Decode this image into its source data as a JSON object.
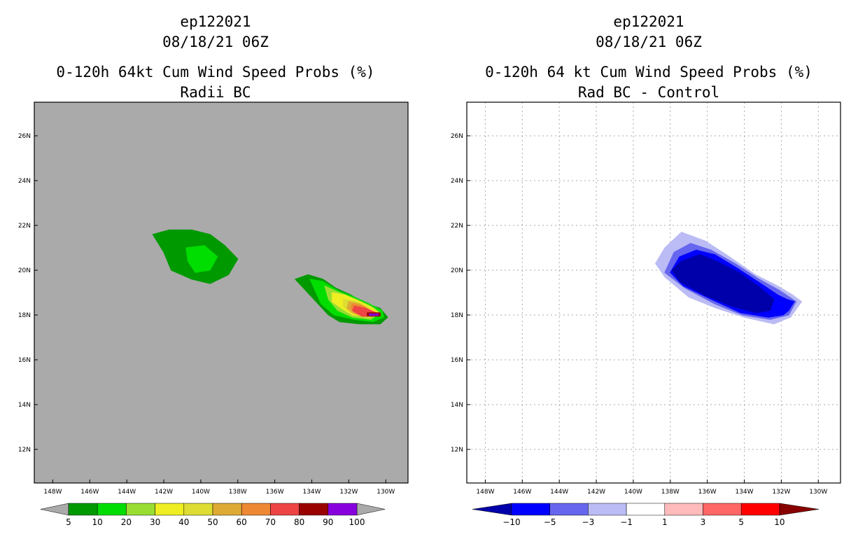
{
  "chart_data": [
    {
      "type": "filled-contour",
      "header": [
        "ep122021",
        "08/18/21 06Z"
      ],
      "title": "0-120h 64kt Cum Wind Speed Probs (%)",
      "subtitle": "Radii BC",
      "background": "#aaaaaa",
      "grid": false,
      "x_ticks": [
        "148W",
        "146W",
        "144W",
        "142W",
        "140W",
        "138W",
        "136W",
        "134W",
        "132W",
        "130W"
      ],
      "y_ticks": [
        "12N",
        "14N",
        "16N",
        "18N",
        "20N",
        "22N",
        "24N",
        "26N"
      ],
      "colorbar": {
        "labels": [
          "5",
          "10",
          "20",
          "30",
          "40",
          "50",
          "60",
          "70",
          "80",
          "90",
          "100"
        ],
        "colors": [
          "#009900",
          "#00dd00",
          "#99dd33",
          "#eeee22",
          "#dddd33",
          "#ddaa33",
          "#ee8833",
          "#ee4444",
          "#990000",
          "#8800dd"
        ],
        "end_color": "#aaaaaa"
      },
      "regions": [
        {
          "level": "5-10",
          "color": "#009900",
          "lonlat": [
            [
              -142.6,
              21.6
            ],
            [
              -141.7,
              21.8
            ],
            [
              -140.5,
              21.8
            ],
            [
              -139.5,
              21.6
            ],
            [
              -138.7,
              21.1
            ],
            [
              -138.0,
              20.5
            ],
            [
              -138.5,
              19.8
            ],
            [
              -139.5,
              19.4
            ],
            [
              -140.5,
              19.6
            ],
            [
              -141.6,
              20.0
            ],
            [
              -142.0,
              20.8
            ],
            [
              -142.3,
              21.2
            ]
          ]
        },
        {
          "level": "10-20",
          "color": "#00dd00",
          "lonlat": [
            [
              -140.8,
              21.0
            ],
            [
              -139.8,
              21.1
            ],
            [
              -139.1,
              20.6
            ],
            [
              -139.5,
              20.0
            ],
            [
              -140.3,
              19.9
            ],
            [
              -140.7,
              20.4
            ]
          ]
        },
        {
          "level": "5-10",
          "color": "#009900",
          "lonlat": [
            [
              -134.9,
              19.6
            ],
            [
              -134.2,
              19.8
            ],
            [
              -133.4,
              19.6
            ],
            [
              -132.7,
              19.2
            ],
            [
              -131.9,
              18.9
            ],
            [
              -131.1,
              18.5
            ],
            [
              -130.3,
              18.3
            ],
            [
              -129.9,
              17.9
            ],
            [
              -130.3,
              17.6
            ],
            [
              -131.4,
              17.6
            ],
            [
              -132.5,
              17.7
            ],
            [
              -133.1,
              18.0
            ],
            [
              -134.0,
              18.8
            ]
          ]
        },
        {
          "level": "10-20",
          "color": "#00dd00",
          "lonlat": [
            [
              -134.1,
              19.6
            ],
            [
              -133.4,
              19.5
            ],
            [
              -132.6,
              19.1
            ],
            [
              -131.7,
              18.8
            ],
            [
              -130.9,
              18.5
            ],
            [
              -130.2,
              18.2
            ],
            [
              -130.1,
              17.9
            ],
            [
              -130.7,
              17.7
            ],
            [
              -131.7,
              17.8
            ],
            [
              -132.8,
              18.0
            ],
            [
              -133.5,
              18.5
            ]
          ]
        },
        {
          "level": "20-30",
          "color": "#99dd33",
          "lonlat": [
            [
              -133.3,
              19.3
            ],
            [
              -132.5,
              19.0
            ],
            [
              -131.6,
              18.7
            ],
            [
              -130.8,
              18.4
            ],
            [
              -130.3,
              18.1
            ],
            [
              -130.8,
              17.8
            ],
            [
              -131.8,
              17.9
            ],
            [
              -132.6,
              18.2
            ],
            [
              -133.1,
              18.7
            ]
          ]
        },
        {
          "level": "30-40",
          "color": "#eeee22",
          "lonlat": [
            [
              -132.9,
              19.0
            ],
            [
              -132.2,
              18.9
            ],
            [
              -131.4,
              18.6
            ],
            [
              -130.7,
              18.3
            ],
            [
              -130.4,
              18.1
            ],
            [
              -130.9,
              17.9
            ],
            [
              -131.8,
              18.0
            ],
            [
              -132.4,
              18.3
            ],
            [
              -132.9,
              18.6
            ]
          ]
        },
        {
          "level": "40-50",
          "color": "#dddd33",
          "lonlat": [
            [
              -132.3,
              18.7
            ],
            [
              -131.6,
              18.6
            ],
            [
              -130.9,
              18.3
            ],
            [
              -130.5,
              18.0
            ],
            [
              -131.1,
              17.9
            ],
            [
              -131.9,
              18.1
            ],
            [
              -132.3,
              18.4
            ]
          ]
        },
        {
          "level": "50-60",
          "color": "#ddaa33",
          "lonlat": [
            [
              -132.0,
              18.6
            ],
            [
              -131.4,
              18.5
            ],
            [
              -130.8,
              18.2
            ],
            [
              -130.6,
              18.0
            ],
            [
              -131.2,
              17.9
            ],
            [
              -131.8,
              18.1
            ],
            [
              -132.1,
              18.3
            ]
          ]
        },
        {
          "level": "60-70",
          "color": "#ee8833",
          "lonlat": [
            [
              -131.8,
              18.5
            ],
            [
              -131.2,
              18.4
            ],
            [
              -130.7,
              18.1
            ],
            [
              -131.2,
              17.95
            ],
            [
              -131.7,
              18.1
            ],
            [
              -131.9,
              18.3
            ]
          ]
        },
        {
          "level": "70-80",
          "color": "#ee4444",
          "lonlat": [
            [
              -131.7,
              18.4
            ],
            [
              -131.1,
              18.3
            ],
            [
              -130.5,
              18.1
            ],
            [
              -130.6,
              17.95
            ],
            [
              -131.3,
              17.95
            ],
            [
              -131.8,
              18.2
            ]
          ]
        },
        {
          "level": "80-90",
          "color": "#990000",
          "lonlat": [
            [
              -131.0,
              18.1
            ],
            [
              -130.3,
              18.1
            ],
            [
              -130.3,
              17.95
            ],
            [
              -131.0,
              17.95
            ]
          ]
        },
        {
          "level": "90-100",
          "color": "#8800dd",
          "lonlat": [
            [
              -130.9,
              18.05
            ],
            [
              -130.4,
              18.05
            ],
            [
              -130.4,
              17.98
            ],
            [
              -130.9,
              17.98
            ]
          ]
        }
      ]
    },
    {
      "type": "filled-contour",
      "header": [
        "ep122021",
        "08/18/21 06Z"
      ],
      "title": "0-120h 64 kt Cum Wind Speed Probs (%)",
      "subtitle": "Rad BC - Control",
      "background": "#ffffff",
      "grid": true,
      "x_ticks": [
        "148W",
        "146W",
        "144W",
        "142W",
        "140W",
        "138W",
        "136W",
        "134W",
        "132W",
        "130W"
      ],
      "y_ticks": [
        "12N",
        "14N",
        "16N",
        "18N",
        "20N",
        "22N",
        "24N",
        "26N"
      ],
      "colorbar": {
        "labels": [
          "-10",
          "-5",
          "-3",
          "-1",
          "1",
          "3",
          "5",
          "10"
        ],
        "colors": [
          "#0000aa",
          "#0000ff",
          "#6666ee",
          "#bbbbf5",
          "#ffffff",
          "#ffbbbb",
          "#ff6666",
          "#ff0000",
          "#880000"
        ]
      },
      "regions": [
        {
          "level": "-3 to -1",
          "color": "#bbbbf5",
          "lonlat": [
            [
              -138.3,
              21.0
            ],
            [
              -137.4,
              21.7
            ],
            [
              -136.1,
              21.3
            ],
            [
              -134.8,
              20.6
            ],
            [
              -133.4,
              19.8
            ],
            [
              -132.2,
              19.3
            ],
            [
              -131.4,
              18.9
            ],
            [
              -130.9,
              18.6
            ],
            [
              -131.5,
              17.9
            ],
            [
              -132.4,
              17.6
            ],
            [
              -134.0,
              17.9
            ],
            [
              -135.5,
              18.3
            ],
            [
              -137.0,
              18.8
            ],
            [
              -138.3,
              19.7
            ],
            [
              -138.8,
              20.3
            ]
          ]
        },
        {
          "level": "-5 to -3",
          "color": "#6666ee",
          "lonlat": [
            [
              -137.8,
              20.8
            ],
            [
              -136.9,
              21.2
            ],
            [
              -135.8,
              20.9
            ],
            [
              -134.5,
              20.3
            ],
            [
              -133.2,
              19.6
            ],
            [
              -132.1,
              19.1
            ],
            [
              -131.2,
              18.6
            ],
            [
              -131.6,
              18.0
            ],
            [
              -132.6,
              17.8
            ],
            [
              -134.1,
              18.0
            ],
            [
              -135.6,
              18.5
            ],
            [
              -137.2,
              19.2
            ],
            [
              -138.3,
              19.9
            ]
          ]
        },
        {
          "level": "-10 to -5",
          "color": "#0000ff",
          "lonlat": [
            [
              -137.5,
              20.6
            ],
            [
              -136.6,
              20.9
            ],
            [
              -135.6,
              20.7
            ],
            [
              -134.4,
              20.1
            ],
            [
              -133.1,
              19.4
            ],
            [
              -132.2,
              18.9
            ],
            [
              -131.7,
              18.7
            ],
            [
              -131.3,
              18.6
            ],
            [
              -131.6,
              18.2
            ],
            [
              -131.9,
              18.0
            ],
            [
              -132.7,
              17.9
            ],
            [
              -134.2,
              18.1
            ],
            [
              -135.8,
              18.7
            ],
            [
              -137.3,
              19.3
            ],
            [
              -138.0,
              19.9
            ]
          ]
        },
        {
          "level": "< -10",
          "color": "#0000aa",
          "lonlat": [
            [
              -137.4,
              20.4
            ],
            [
              -136.4,
              20.7
            ],
            [
              -135.5,
              20.4
            ],
            [
              -134.3,
              19.9
            ],
            [
              -133.1,
              19.2
            ],
            [
              -132.4,
              18.7
            ],
            [
              -132.6,
              18.2
            ],
            [
              -133.4,
              18.1
            ],
            [
              -134.7,
              18.4
            ],
            [
              -136.2,
              18.9
            ],
            [
              -137.5,
              19.5
            ],
            [
              -137.9,
              20.0
            ]
          ]
        }
      ]
    }
  ]
}
